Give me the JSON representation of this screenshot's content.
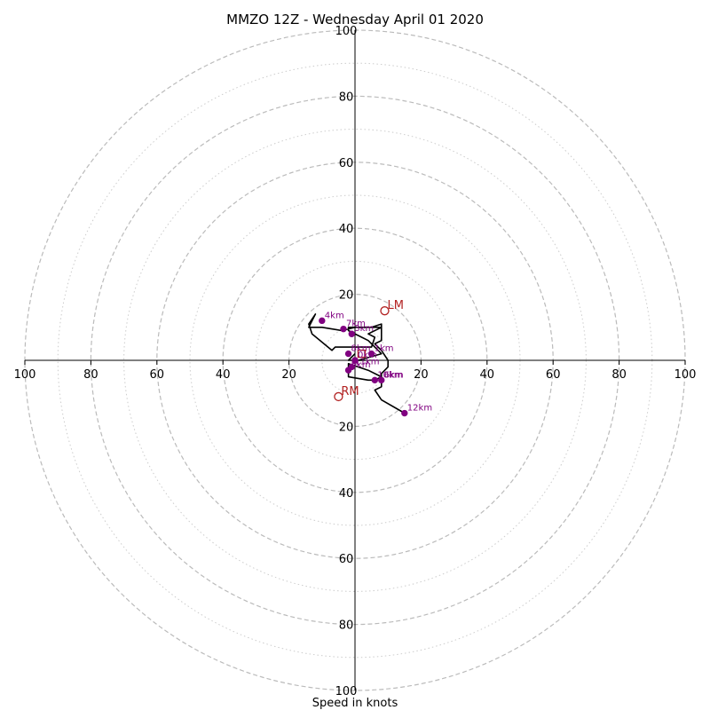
{
  "chart_data": {
    "type": "line",
    "title": "MMZO 12Z - Wednesday April 01 2020",
    "xlabel": "Speed in knots",
    "range": [
      -100,
      100
    ],
    "ring_major": [
      20,
      40,
      60,
      80,
      100
    ],
    "ring_minor": [
      10,
      30,
      50,
      70,
      90
    ],
    "tick_labels": [
      "100",
      "80",
      "60",
      "40",
      "20",
      "20",
      "40",
      "60",
      "80",
      "100"
    ],
    "tick_values": [
      -100,
      -80,
      -60,
      -40,
      -20,
      20,
      40,
      60,
      80,
      100
    ],
    "vertical_tick_labels": [
      "100",
      "80",
      "60",
      "40",
      "20",
      "20",
      "40",
      "60",
      "80",
      "100"
    ],
    "vertical_tick_values": [
      100,
      80,
      60,
      40,
      20,
      -20,
      -40,
      -60,
      -80,
      -100
    ],
    "grid": true,
    "colors": {
      "trace": "#000000",
      "height_points": "#800080",
      "motion": "#b22222",
      "grid": "#bbbbbb"
    },
    "hodograph": {
      "u": [
        0,
        -2,
        3,
        1,
        8,
        8,
        6,
        4,
        -2,
        -2,
        0,
        4,
        8,
        4,
        6,
        5,
        -6,
        -7,
        -13,
        -14,
        -12,
        -14,
        -10,
        -4,
        0,
        5,
        8,
        8,
        8,
        6,
        8,
        10,
        10,
        8,
        8,
        6,
        4,
        -2,
        -2,
        4,
        8,
        8,
        8,
        6,
        8,
        15
      ],
      "v": [
        2,
        0,
        0,
        0,
        2,
        2,
        4,
        6,
        9,
        10,
        10,
        10,
        10,
        8,
        7,
        4,
        4,
        3,
        8,
        11,
        14,
        10,
        10,
        9,
        10,
        10,
        11,
        10,
        6,
        5,
        3,
        0,
        -2,
        -4,
        -5,
        -6,
        -6,
        -5,
        -1,
        -3,
        -5,
        -7,
        -8,
        -9,
        -12,
        -16
      ]
    },
    "height_points": [
      {
        "label": "4km",
        "u": -10,
        "v": 12
      },
      {
        "label": "7km",
        "u": -3.5,
        "v": 9.5
      },
      {
        "label": "3km",
        "u": -1,
        "v": 8
      },
      {
        "label": "8km",
        "u": -2,
        "v": 2
      },
      {
        "label": "1km",
        "u": 5,
        "v": 2
      },
      {
        "label": "11km",
        "u": -1,
        "v": -2
      },
      {
        "label": "5km",
        "u": -2,
        "v": -3
      },
      {
        "label": "0km",
        "u": 0,
        "v": 0
      },
      {
        "label": "6km",
        "u": 8,
        "v": -6
      },
      {
        "label": "10km",
        "u": 6,
        "v": -6
      },
      {
        "label": "12km",
        "u": 15,
        "v": -16
      }
    ],
    "storm_motion": [
      {
        "label": "LM",
        "u": 9,
        "v": 15
      },
      {
        "label": "RM",
        "u": -5,
        "v": -11
      }
    ],
    "mean_wind": {
      "u": 2,
      "v": 2
    }
  }
}
